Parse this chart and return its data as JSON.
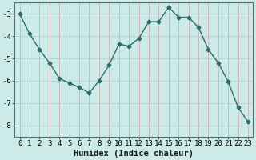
{
  "x": [
    0,
    1,
    2,
    3,
    4,
    5,
    6,
    7,
    8,
    9,
    10,
    11,
    12,
    13,
    14,
    15,
    16,
    17,
    18,
    19,
    20,
    21,
    22,
    23
  ],
  "y": [
    -3.0,
    -3.9,
    -4.6,
    -5.2,
    -5.9,
    -6.1,
    -6.3,
    -6.55,
    -6.0,
    -5.3,
    -4.35,
    -4.45,
    -4.1,
    -3.35,
    -3.35,
    -2.7,
    -3.15,
    -3.15,
    -3.6,
    -4.6,
    -5.2,
    -6.05,
    -7.2,
    -7.85
  ],
  "line_color": "#2e6b6b",
  "marker": "D",
  "marker_size": 2.5,
  "bg_color": "#cceae8",
  "grid_color": "#b0d4d0",
  "xlabel": "Humidex (Indice chaleur)",
  "ylim": [
    -8.5,
    -2.5
  ],
  "xlim": [
    -0.5,
    23.5
  ],
  "yticks": [
    -8,
    -7,
    -6,
    -5,
    -4,
    -3
  ],
  "xticks": [
    0,
    1,
    2,
    3,
    4,
    5,
    6,
    7,
    8,
    9,
    10,
    11,
    12,
    13,
    14,
    15,
    16,
    17,
    18,
    19,
    20,
    21,
    22,
    23
  ],
  "tick_fontsize": 6.5,
  "xlabel_fontsize": 7.5,
  "linewidth": 1.0
}
